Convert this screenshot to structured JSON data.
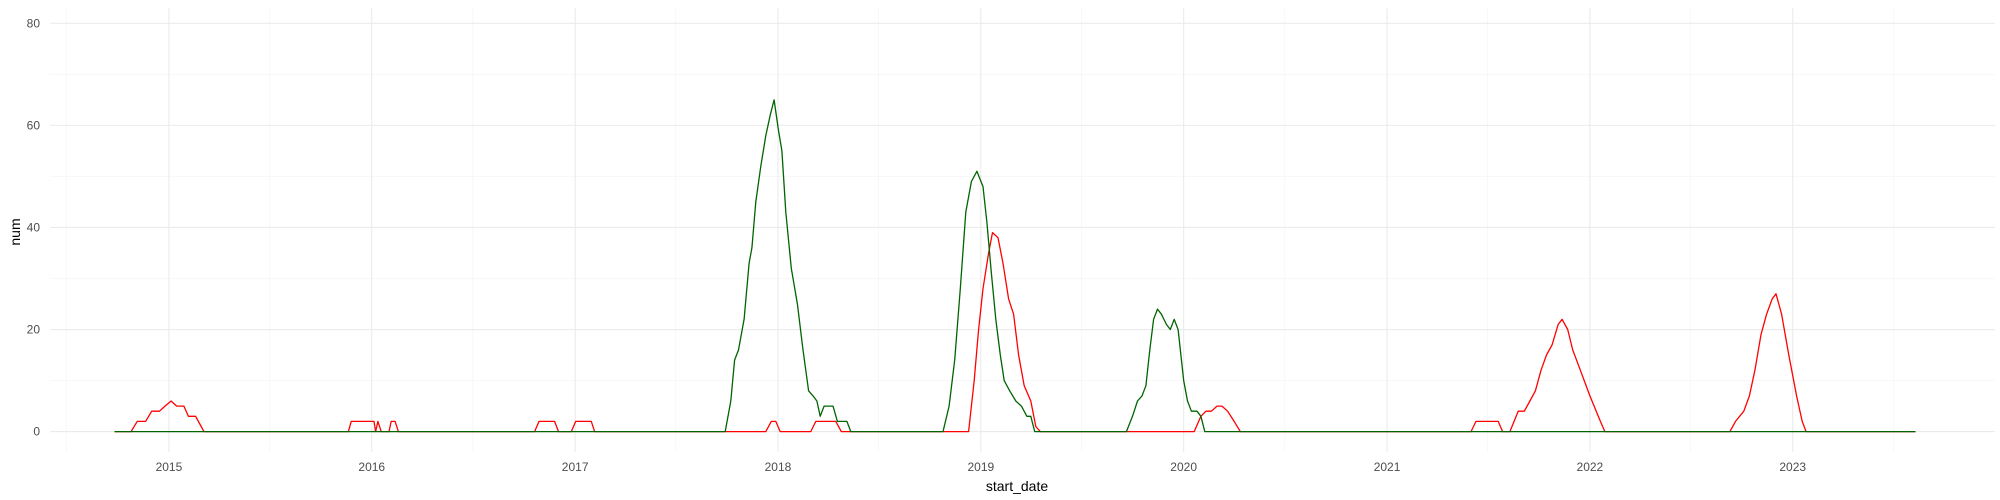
{
  "chart_data": {
    "type": "line",
    "title": "",
    "xlabel": "start_date",
    "ylabel": "num",
    "x_ticks": [
      "2015",
      "2016",
      "2017",
      "2018",
      "2019",
      "2020",
      "2021",
      "2022",
      "2023"
    ],
    "y_ticks": [
      0,
      20,
      40,
      60,
      80
    ],
    "xlim": [
      "2014-06-01",
      "2023-12-31"
    ],
    "ylim": [
      -4,
      83
    ],
    "grid": true,
    "legend": "none",
    "series": [
      {
        "color": "#ff0000",
        "points": [
          [
            "2014-09-25",
            0
          ],
          [
            "2014-10-25",
            0
          ],
          [
            "2014-11-05",
            2
          ],
          [
            "2014-11-20",
            2
          ],
          [
            "2014-12-01",
            4
          ],
          [
            "2014-12-15",
            4
          ],
          [
            "2014-12-25",
            5
          ],
          [
            "2015-01-05",
            6
          ],
          [
            "2015-01-15",
            5
          ],
          [
            "2015-01-28",
            5
          ],
          [
            "2015-02-05",
            3
          ],
          [
            "2015-02-18",
            3
          ],
          [
            "2015-02-28",
            1
          ],
          [
            "2015-03-05",
            0
          ],
          [
            "2015-11-20",
            0
          ],
          [
            "2015-11-25",
            2
          ],
          [
            "2016-01-05",
            2
          ],
          [
            "2016-01-08",
            0
          ],
          [
            "2016-01-12",
            2
          ],
          [
            "2016-01-18",
            0
          ],
          [
            "2016-02-01",
            0
          ],
          [
            "2016-02-05",
            2
          ],
          [
            "2016-02-12",
            2
          ],
          [
            "2016-02-18",
            0
          ],
          [
            "2016-10-20",
            0
          ],
          [
            "2016-10-28",
            2
          ],
          [
            "2016-11-25",
            2
          ],
          [
            "2016-12-02",
            0
          ],
          [
            "2016-12-25",
            0
          ],
          [
            "2017-01-02",
            2
          ],
          [
            "2017-01-30",
            2
          ],
          [
            "2017-02-05",
            0
          ],
          [
            "2017-12-10",
            0
          ],
          [
            "2017-12-20",
            2
          ],
          [
            "2017-12-28",
            2
          ],
          [
            "2018-01-05",
            0
          ],
          [
            "2018-03-01",
            0
          ],
          [
            "2018-03-10",
            2
          ],
          [
            "2018-04-15",
            2
          ],
          [
            "2018-04-25",
            0
          ],
          [
            "2018-12-10",
            0
          ],
          [
            "2018-12-20",
            10
          ],
          [
            "2018-12-28",
            20
          ],
          [
            "2019-01-05",
            28
          ],
          [
            "2019-01-15",
            35
          ],
          [
            "2019-01-22",
            39
          ],
          [
            "2019-02-01",
            38
          ],
          [
            "2019-02-10",
            33
          ],
          [
            "2019-02-20",
            26
          ],
          [
            "2019-03-01",
            23
          ],
          [
            "2019-03-10",
            15
          ],
          [
            "2019-03-20",
            9
          ],
          [
            "2019-04-01",
            6
          ],
          [
            "2019-04-10",
            1
          ],
          [
            "2019-04-18",
            0
          ],
          [
            "2020-01-20",
            0
          ],
          [
            "2020-02-01",
            3
          ],
          [
            "2020-02-10",
            4
          ],
          [
            "2020-02-20",
            4
          ],
          [
            "2020-03-01",
            5
          ],
          [
            "2020-03-10",
            5
          ],
          [
            "2020-03-20",
            4
          ],
          [
            "2020-04-01",
            2
          ],
          [
            "2020-04-12",
            0
          ],
          [
            "2021-06-01",
            0
          ],
          [
            "2021-06-10",
            2
          ],
          [
            "2021-07-20",
            2
          ],
          [
            "2021-07-28",
            0
          ],
          [
            "2021-08-10",
            0
          ],
          [
            "2021-08-25",
            4
          ],
          [
            "2021-09-05",
            4
          ],
          [
            "2021-09-15",
            6
          ],
          [
            "2021-09-25",
            8
          ],
          [
            "2021-10-05",
            12
          ],
          [
            "2021-10-15",
            15
          ],
          [
            "2021-10-25",
            17
          ],
          [
            "2021-11-05",
            21
          ],
          [
            "2021-11-12",
            22
          ],
          [
            "2021-11-22",
            20
          ],
          [
            "2021-12-01",
            16
          ],
          [
            "2021-12-15",
            12
          ],
          [
            "2022-01-01",
            7
          ],
          [
            "2022-01-20",
            2
          ],
          [
            "2022-01-28",
            0
          ],
          [
            "2022-09-10",
            0
          ],
          [
            "2022-09-20",
            2
          ],
          [
            "2022-10-05",
            4
          ],
          [
            "2022-10-15",
            7
          ],
          [
            "2022-10-25",
            12
          ],
          [
            "2022-11-05",
            19
          ],
          [
            "2022-11-15",
            23
          ],
          [
            "2022-11-25",
            26
          ],
          [
            "2022-12-02",
            27
          ],
          [
            "2022-12-12",
            23
          ],
          [
            "2022-12-25",
            15
          ],
          [
            "2023-01-08",
            7
          ],
          [
            "2023-01-18",
            2
          ],
          [
            "2023-01-25",
            0
          ],
          [
            "2023-08-10",
            0
          ]
        ]
      },
      {
        "color": "#006400",
        "points": [
          [
            "2014-09-25",
            0
          ],
          [
            "2017-09-28",
            0
          ],
          [
            "2017-10-08",
            6
          ],
          [
            "2017-10-15",
            14
          ],
          [
            "2017-10-22",
            16
          ],
          [
            "2017-11-01",
            22
          ],
          [
            "2017-11-10",
            33
          ],
          [
            "2017-11-15",
            36
          ],
          [
            "2017-11-22",
            45
          ],
          [
            "2017-12-01",
            52
          ],
          [
            "2017-12-10",
            58
          ],
          [
            "2017-12-18",
            62
          ],
          [
            "2017-12-25",
            65
          ],
          [
            "2018-01-02",
            59
          ],
          [
            "2018-01-08",
            55
          ],
          [
            "2018-01-15",
            43
          ],
          [
            "2018-01-25",
            32
          ],
          [
            "2018-02-05",
            25
          ],
          [
            "2018-02-15",
            16
          ],
          [
            "2018-02-25",
            8
          ],
          [
            "2018-03-05",
            7
          ],
          [
            "2018-03-12",
            6
          ],
          [
            "2018-03-18",
            3
          ],
          [
            "2018-03-25",
            5
          ],
          [
            "2018-04-10",
            5
          ],
          [
            "2018-04-18",
            2
          ],
          [
            "2018-05-05",
            2
          ],
          [
            "2018-05-12",
            0
          ],
          [
            "2018-10-25",
            0
          ],
          [
            "2018-11-05",
            5
          ],
          [
            "2018-11-15",
            14
          ],
          [
            "2018-11-25",
            28
          ],
          [
            "2018-12-05",
            43
          ],
          [
            "2018-12-15",
            49
          ],
          [
            "2018-12-25",
            51
          ],
          [
            "2019-01-05",
            48
          ],
          [
            "2019-01-12",
            41
          ],
          [
            "2019-01-20",
            31
          ],
          [
            "2019-01-28",
            22
          ],
          [
            "2019-02-05",
            15
          ],
          [
            "2019-02-12",
            10
          ],
          [
            "2019-02-22",
            8
          ],
          [
            "2019-03-05",
            6
          ],
          [
            "2019-03-15",
            5
          ],
          [
            "2019-03-25",
            3
          ],
          [
            "2019-04-01",
            3
          ],
          [
            "2019-04-08",
            0
          ],
          [
            "2019-09-20",
            0
          ],
          [
            "2019-10-01",
            3
          ],
          [
            "2019-10-10",
            6
          ],
          [
            "2019-10-18",
            7
          ],
          [
            "2019-10-25",
            9
          ],
          [
            "2019-11-01",
            16
          ],
          [
            "2019-11-08",
            22
          ],
          [
            "2019-11-15",
            24
          ],
          [
            "2019-11-22",
            23
          ],
          [
            "2019-12-01",
            21
          ],
          [
            "2019-12-08",
            20
          ],
          [
            "2019-12-15",
            22
          ],
          [
            "2019-12-22",
            20
          ],
          [
            "2020-01-01",
            10
          ],
          [
            "2020-01-08",
            6
          ],
          [
            "2020-01-15",
            4
          ],
          [
            "2020-01-25",
            4
          ],
          [
            "2020-02-01",
            3
          ],
          [
            "2020-02-08",
            0
          ],
          [
            "2023-08-10",
            0
          ]
        ]
      }
    ]
  }
}
